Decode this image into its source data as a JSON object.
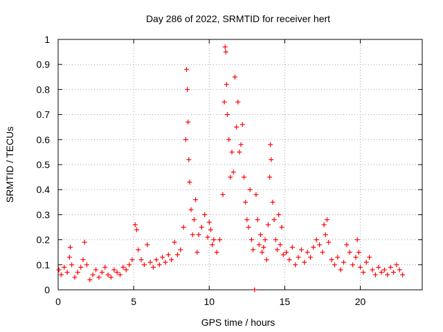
{
  "chart_data": {
    "type": "scatter",
    "title": "Day 286 of 2022, SRMTID for receiver hert",
    "xlabel": "GPS time / hours",
    "ylabel": "SRMTID / TECUs",
    "xlim": [
      0,
      24.1
    ],
    "ylim": [
      0,
      1
    ],
    "x_ticks": [
      0,
      5,
      10,
      15,
      20
    ],
    "x_tick_labels": [
      "0",
      "5",
      "10",
      "15",
      "20"
    ],
    "y_ticks": [
      0,
      0.1,
      0.2,
      0.3,
      0.4,
      0.5,
      0.6,
      0.7,
      0.8,
      0.9,
      1
    ],
    "y_tick_labels": [
      "0",
      "0.1",
      "0.2",
      "0.3",
      "0.4",
      "0.5",
      "0.6",
      "0.7",
      "0.8",
      "0.9",
      "1"
    ],
    "grid": true,
    "marker": "+",
    "color": "#ff0000",
    "series": [
      {
        "name": "SRMTID",
        "points": [
          [
            0.05,
            0.08
          ],
          [
            0.2,
            0.06
          ],
          [
            0.4,
            0.09
          ],
          [
            0.6,
            0.07
          ],
          [
            0.75,
            0.13
          ],
          [
            0.8,
            0.17
          ],
          [
            0.9,
            0.1
          ],
          [
            1.1,
            0.05
          ],
          [
            1.3,
            0.07
          ],
          [
            1.5,
            0.09
          ],
          [
            1.65,
            0.12
          ],
          [
            1.75,
            0.19
          ],
          [
            1.9,
            0.1
          ],
          [
            2.1,
            0.04
          ],
          [
            2.3,
            0.06
          ],
          [
            2.5,
            0.08
          ],
          [
            2.7,
            0.05
          ],
          [
            2.9,
            0.07
          ],
          [
            3.1,
            0.09
          ],
          [
            3.3,
            0.06
          ],
          [
            3.5,
            0.05
          ],
          [
            3.7,
            0.08
          ],
          [
            3.9,
            0.07
          ],
          [
            4.1,
            0.06
          ],
          [
            4.3,
            0.09
          ],
          [
            4.5,
            0.08
          ],
          [
            4.7,
            0.1
          ],
          [
            4.9,
            0.12
          ],
          [
            5.1,
            0.26
          ],
          [
            5.2,
            0.24
          ],
          [
            5.3,
            0.16
          ],
          [
            5.5,
            0.12
          ],
          [
            5.7,
            0.1
          ],
          [
            5.9,
            0.18
          ],
          [
            6.1,
            0.11
          ],
          [
            6.3,
            0.09
          ],
          [
            6.5,
            0.12
          ],
          [
            6.7,
            0.1
          ],
          [
            6.9,
            0.13
          ],
          [
            7.1,
            0.11
          ],
          [
            7.3,
            0.14
          ],
          [
            7.5,
            0.12
          ],
          [
            7.7,
            0.19
          ],
          [
            7.9,
            0.14
          ],
          [
            8.1,
            0.16
          ],
          [
            8.3,
            0.25
          ],
          [
            8.45,
            0.6
          ],
          [
            8.5,
            0.88
          ],
          [
            8.55,
            0.8
          ],
          [
            8.6,
            0.67
          ],
          [
            8.65,
            0.52
          ],
          [
            8.7,
            0.43
          ],
          [
            8.8,
            0.32
          ],
          [
            8.9,
            0.22
          ],
          [
            9.0,
            0.28
          ],
          [
            9.1,
            0.36
          ],
          [
            9.2,
            0.15
          ],
          [
            9.3,
            0.22
          ],
          [
            9.5,
            0.25
          ],
          [
            9.7,
            0.3
          ],
          [
            9.9,
            0.21
          ],
          [
            10.0,
            0.27
          ],
          [
            10.1,
            0.24
          ],
          [
            10.2,
            0.18
          ],
          [
            10.3,
            0.2
          ],
          [
            10.5,
            0.15
          ],
          [
            10.7,
            0.2
          ],
          [
            10.9,
            0.38
          ],
          [
            11.0,
            0.75
          ],
          [
            11.05,
            0.97
          ],
          [
            11.1,
            0.95
          ],
          [
            11.15,
            0.82
          ],
          [
            11.2,
            0.7
          ],
          [
            11.3,
            0.6
          ],
          [
            11.4,
            0.45
          ],
          [
            11.5,
            0.55
          ],
          [
            11.6,
            0.47
          ],
          [
            11.7,
            0.85
          ],
          [
            11.8,
            0.65
          ],
          [
            11.9,
            0.75
          ],
          [
            12.0,
            0.55
          ],
          [
            12.1,
            0.58
          ],
          [
            12.2,
            0.66
          ],
          [
            12.3,
            0.45
          ],
          [
            12.4,
            0.35
          ],
          [
            12.5,
            0.28
          ],
          [
            12.6,
            0.25
          ],
          [
            12.7,
            0.4
          ],
          [
            12.8,
            0.2
          ],
          [
            12.9,
            0.16
          ],
          [
            13.0,
            0.0
          ],
          [
            13.1,
            0.38
          ],
          [
            13.2,
            0.28
          ],
          [
            13.3,
            0.18
          ],
          [
            13.4,
            0.22
          ],
          [
            13.5,
            0.15
          ],
          [
            13.6,
            0.17
          ],
          [
            13.7,
            0.2
          ],
          [
            13.8,
            0.12
          ],
          [
            13.9,
            0.26
          ],
          [
            14.0,
            0.45
          ],
          [
            14.05,
            0.58
          ],
          [
            14.1,
            0.52
          ],
          [
            14.2,
            0.35
          ],
          [
            14.3,
            0.28
          ],
          [
            14.4,
            0.2
          ],
          [
            14.5,
            0.16
          ],
          [
            14.6,
            0.3
          ],
          [
            14.7,
            0.18
          ],
          [
            14.8,
            0.25
          ],
          [
            14.9,
            0.14
          ],
          [
            15.1,
            0.15
          ],
          [
            15.3,
            0.12
          ],
          [
            15.5,
            0.17
          ],
          [
            15.7,
            0.1
          ],
          [
            15.9,
            0.13
          ],
          [
            16.1,
            0.16
          ],
          [
            16.3,
            0.11
          ],
          [
            16.5,
            0.15
          ],
          [
            16.7,
            0.13
          ],
          [
            16.9,
            0.17
          ],
          [
            17.1,
            0.2
          ],
          [
            17.3,
            0.18
          ],
          [
            17.5,
            0.15
          ],
          [
            17.6,
            0.26
          ],
          [
            17.7,
            0.22
          ],
          [
            17.8,
            0.28
          ],
          [
            17.9,
            0.19
          ],
          [
            18.1,
            0.12
          ],
          [
            18.3,
            0.1
          ],
          [
            18.5,
            0.13
          ],
          [
            18.7,
            0.08
          ],
          [
            18.9,
            0.11
          ],
          [
            19.1,
            0.18
          ],
          [
            19.3,
            0.15
          ],
          [
            19.5,
            0.1
          ],
          [
            19.7,
            0.13
          ],
          [
            19.8,
            0.2
          ],
          [
            19.9,
            0.15
          ],
          [
            20.0,
            0.09
          ],
          [
            20.2,
            0.07
          ],
          [
            20.4,
            0.11
          ],
          [
            20.6,
            0.13
          ],
          [
            20.8,
            0.08
          ],
          [
            21.0,
            0.06
          ],
          [
            21.2,
            0.09
          ],
          [
            21.4,
            0.07
          ],
          [
            21.6,
            0.08
          ],
          [
            21.8,
            0.06
          ],
          [
            22.0,
            0.09
          ],
          [
            22.2,
            0.07
          ],
          [
            22.4,
            0.1
          ],
          [
            22.6,
            0.08
          ],
          [
            22.8,
            0.06
          ]
        ]
      }
    ]
  }
}
